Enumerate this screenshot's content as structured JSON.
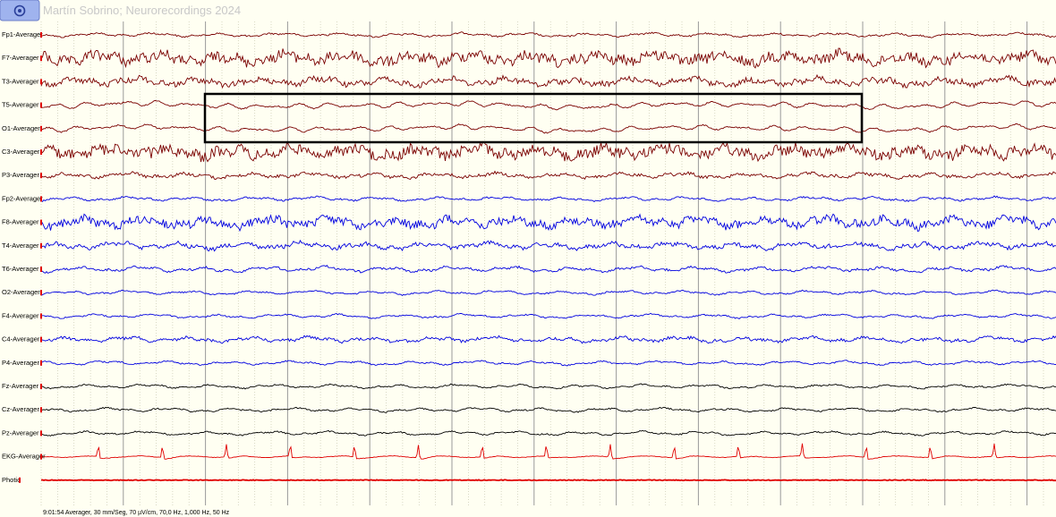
{
  "header": {
    "watermark": "Martín Sobrino; Neurorecordings 2024"
  },
  "channels": [
    {
      "label": "Fp1-Averager",
      "color": "#7a0000"
    },
    {
      "label": "F7-Averager",
      "color": "#7a0000"
    },
    {
      "label": "T3-Averager",
      "color": "#7a0000"
    },
    {
      "label": "T5-Averager",
      "color": "#7a0000"
    },
    {
      "label": "O1-Averager",
      "color": "#7a0000"
    },
    {
      "label": "C3-Averager",
      "color": "#7a0000"
    },
    {
      "label": "P3-Averager",
      "color": "#7a0000"
    },
    {
      "label": "Fp2-Averager",
      "color": "#0000e0"
    },
    {
      "label": "F8-Averager",
      "color": "#0000e0"
    },
    {
      "label": "T4-Averager",
      "color": "#0000e0"
    },
    {
      "label": "T6-Averager",
      "color": "#0000e0"
    },
    {
      "label": "O2-Averager",
      "color": "#0000e0"
    },
    {
      "label": "F4-Averager",
      "color": "#0000e0"
    },
    {
      "label": "C4-Averager",
      "color": "#0000e0"
    },
    {
      "label": "P4-Averager",
      "color": "#0000e0"
    },
    {
      "label": "Fz-Averager",
      "color": "#000000"
    },
    {
      "label": "Cz-Averager",
      "color": "#000000"
    },
    {
      "label": "Pz-Averager",
      "color": "#000000"
    },
    {
      "label": "EKG-Averager",
      "color": "#e00000"
    },
    {
      "label": "Photic",
      "color": "#e00000"
    }
  ],
  "status": "9:01:54 Averager, 30 mm/Seg, 70 µV/cm, 70,0 Hz, 1,000 Hz, 50 Hz"
}
